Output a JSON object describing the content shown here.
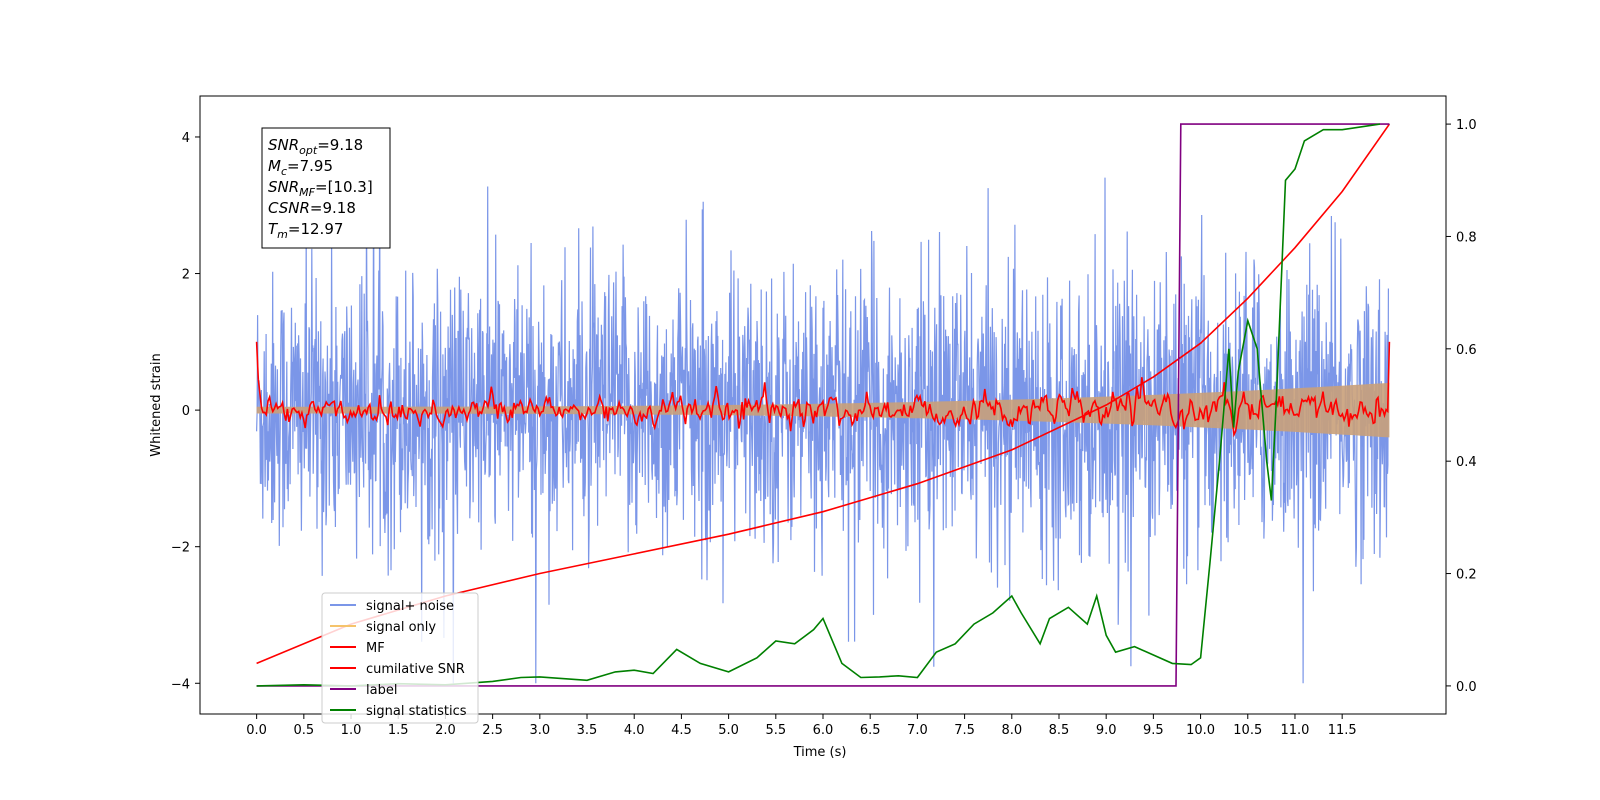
{
  "chart_data": {
    "type": "line",
    "xlabel": "Time (s)",
    "ylabel": "Whitened strain",
    "xlim": [
      -0.6,
      12.6
    ],
    "ylim_left": [
      -4.45,
      4.6
    ],
    "ylim_right": [
      -0.05,
      1.05
    ],
    "x_ticks": [
      "0.0",
      "0.5",
      "1.0",
      "1.5",
      "2.0",
      "2.5",
      "3.0",
      "3.5",
      "4.0",
      "4.5",
      "5.0",
      "5.5",
      "6.0",
      "6.5",
      "7.0",
      "7.5",
      "8.0",
      "8.5",
      "9.0",
      "9.5",
      "10.0",
      "10.5",
      "11.0",
      "11.5"
    ],
    "y_ticks_left": [
      "-4",
      "-2",
      "0",
      "2",
      "4"
    ],
    "y_ticks_right": [
      "0.0",
      "0.2",
      "0.4",
      "0.6",
      "0.8",
      "1.0"
    ],
    "annotation": {
      "lines": [
        {
          "sym": "SNR",
          "sub": "opt",
          "val": "=9.18"
        },
        {
          "sym": "M",
          "sub": "c",
          "val": "=7.95"
        },
        {
          "sym": "SNR",
          "sub": "MF",
          "val": "=[10.3]"
        },
        {
          "sym": "CSNR",
          "sub": "",
          "val": "=9.18"
        },
        {
          "sym": "T",
          "sub": "m",
          "val": "=12.97"
        }
      ]
    },
    "legend_position": "lower-left",
    "legend": [
      {
        "label": "signal+ noise",
        "color": "#7b96e8"
      },
      {
        "label": "signal only",
        "color": "#f5c36b"
      },
      {
        "label": "MF",
        "color": "#ff0000"
      },
      {
        "label": "cumilative SNR",
        "color": "#ff0000"
      },
      {
        "label": "label",
        "color": "#800080"
      },
      {
        "label": "signal statistics",
        "color": "#008000"
      }
    ],
    "series": [
      {
        "name": "signal+ noise",
        "axis": "left",
        "kind": "noise band",
        "x_range": [
          0.0,
          11.99
        ],
        "typical_range": [
          -2.3,
          2.3
        ],
        "max": 4.18,
        "min": -4.0
      },
      {
        "name": "signal only",
        "axis": "left",
        "kind": "chirp envelope",
        "amplitude_start": 0.05,
        "amplitude_end": 0.4
      },
      {
        "name": "MF",
        "axis": "left",
        "kind": "noisy trace near 0",
        "start_value": 1.0,
        "end_value": 1.0
      },
      {
        "name": "cumilative SNR",
        "axis": "right",
        "x": [
          0.0,
          1.0,
          2.0,
          3.0,
          4.0,
          5.0,
          6.0,
          7.0,
          8.0,
          9.0,
          9.5,
          10.0,
          10.5,
          11.0,
          11.5,
          12.0
        ],
        "y": [
          0.04,
          0.11,
          0.16,
          0.2,
          0.235,
          0.27,
          0.31,
          0.36,
          0.42,
          0.5,
          0.55,
          0.61,
          0.69,
          0.78,
          0.88,
          1.0
        ]
      },
      {
        "name": "label",
        "axis": "right",
        "x": [
          0.0,
          9.74,
          9.79,
          12.0
        ],
        "y": [
          0.0,
          0.0,
          1.0,
          1.0
        ]
      },
      {
        "name": "signal statistics",
        "axis": "right",
        "x": [
          0.0,
          0.5,
          1.0,
          1.5,
          2.0,
          2.5,
          2.8,
          3.0,
          3.5,
          3.8,
          4.0,
          4.2,
          4.45,
          4.7,
          5.0,
          5.3,
          5.5,
          5.7,
          5.9,
          6.0,
          6.2,
          6.4,
          6.6,
          6.8,
          7.0,
          7.2,
          7.4,
          7.6,
          7.8,
          8.0,
          8.1,
          8.3,
          8.4,
          8.6,
          8.8,
          8.9,
          9.0,
          9.1,
          9.3,
          9.5,
          9.7,
          9.9,
          10.0,
          10.1,
          10.2,
          10.3,
          10.35,
          10.4,
          10.5,
          10.6,
          10.7,
          10.75,
          10.8,
          10.9,
          11.0,
          11.1,
          11.2,
          11.3,
          11.5,
          11.9
        ],
        "y": [
          0.0,
          0.002,
          0.0,
          0.004,
          0.002,
          0.008,
          0.015,
          0.016,
          0.01,
          0.025,
          0.028,
          0.022,
          0.065,
          0.04,
          0.025,
          0.05,
          0.08,
          0.075,
          0.1,
          0.12,
          0.04,
          0.015,
          0.016,
          0.018,
          0.015,
          0.06,
          0.075,
          0.11,
          0.13,
          0.16,
          0.13,
          0.075,
          0.12,
          0.14,
          0.11,
          0.16,
          0.09,
          0.06,
          0.07,
          0.055,
          0.04,
          0.038,
          0.05,
          0.22,
          0.4,
          0.6,
          0.46,
          0.56,
          0.65,
          0.6,
          0.4,
          0.33,
          0.5,
          0.9,
          0.92,
          0.97,
          0.98,
          0.99,
          0.99,
          1.0
        ]
      }
    ]
  }
}
